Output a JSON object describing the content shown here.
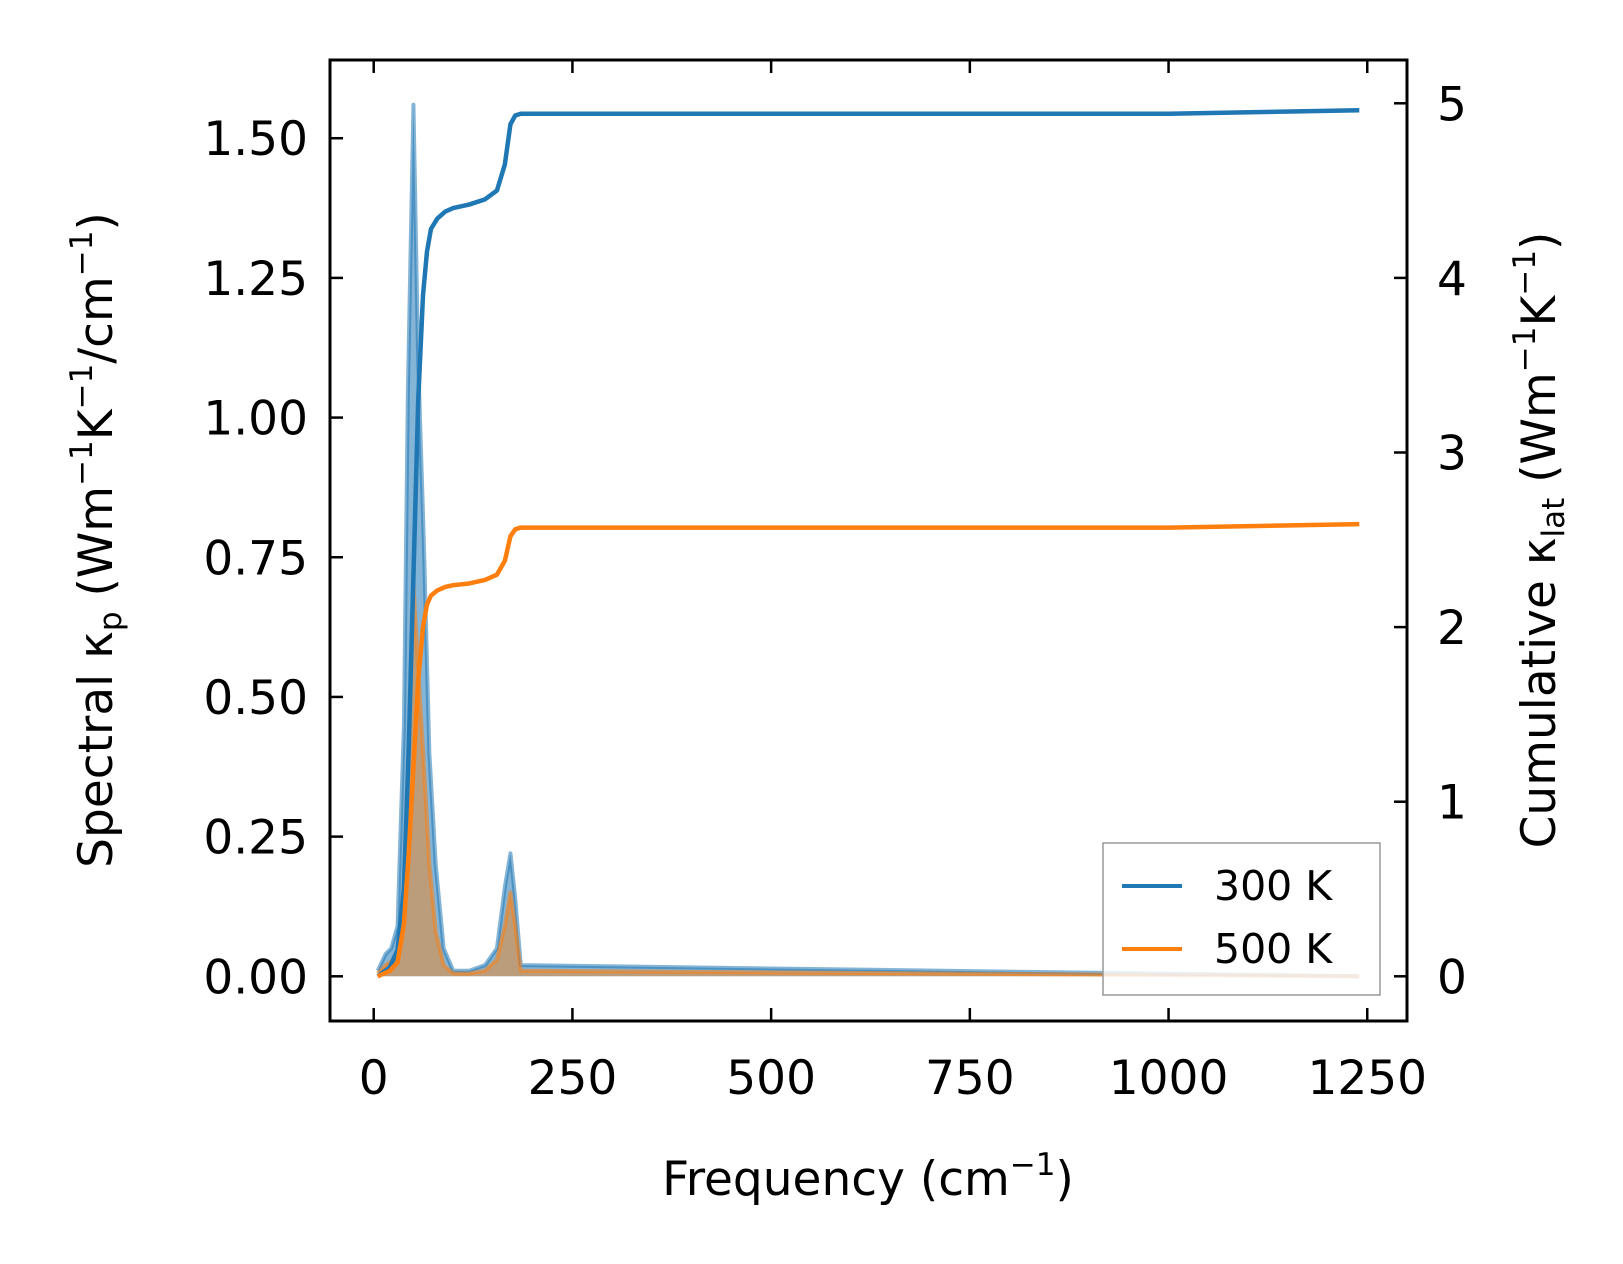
{
  "chart_data": {
    "type": "line",
    "xlabel": {
      "main": "Frequency (cm",
      "sup": "−1",
      "end": ")"
    },
    "ylabel_left": {
      "pre": "Spectral κ",
      "sub": "p",
      "mid1": " (Wm",
      "sup1": "−1",
      "mid2": "K",
      "sup2": "−1",
      "mid3": "/cm",
      "sup3": "−1",
      "end": ")"
    },
    "ylabel_right": {
      "pre": "Cumulative κ",
      "sub": "lat",
      "mid1": " (Wm",
      "sup1": "−1",
      "mid2": "K",
      "sup2": "−1",
      "end": ")"
    },
    "xlim": [
      -55,
      1300
    ],
    "ylim_left": [
      -0.08,
      1.64
    ],
    "ylim_right": [
      -0.256,
      5.248
    ],
    "xticks": [
      0,
      250,
      500,
      750,
      1000,
      1250
    ],
    "xtick_labels": [
      "0",
      "250",
      "500",
      "750",
      "1000",
      "1250"
    ],
    "yticks_left": [
      0.0,
      0.25,
      0.5,
      0.75,
      1.0,
      1.25,
      1.5
    ],
    "ytick_labels_left": [
      "0.00",
      "0.25",
      "0.50",
      "0.75",
      "1.00",
      "1.25",
      "1.50"
    ],
    "yticks_right": [
      0,
      1,
      2,
      3,
      4,
      5
    ],
    "ytick_labels_right": [
      "0",
      "1",
      "2",
      "3",
      "4",
      "5"
    ],
    "legend": {
      "position": "lower-right",
      "entries": [
        {
          "label": "300 K",
          "color": "#1f77b4"
        },
        {
          "label": "500 K",
          "color": "#ff7f0e"
        }
      ]
    },
    "series": [
      {
        "name": "300 K",
        "color": "#1f77b4",
        "spectral": {
          "x": [
            5,
            15,
            22,
            30,
            38,
            43,
            50,
            56,
            63,
            70,
            78,
            88,
            100,
            120,
            140,
            155,
            165,
            172,
            178,
            185,
            1240
          ],
          "y": [
            0.01,
            0.04,
            0.05,
            0.09,
            0.45,
            1.05,
            1.56,
            1.1,
            0.78,
            0.4,
            0.2,
            0.05,
            0.01,
            0.01,
            0.02,
            0.05,
            0.16,
            0.22,
            0.14,
            0.02,
            0.0
          ]
        },
        "cumulative": {
          "x": [
            5,
            20,
            30,
            38,
            44,
            50,
            56,
            62,
            67,
            72,
            80,
            90,
            100,
            120,
            140,
            155,
            165,
            172,
            178,
            185,
            1000,
            1240
          ],
          "y": [
            0.0,
            0.05,
            0.15,
            0.5,
            1.3,
            2.3,
            3.3,
            3.9,
            4.15,
            4.28,
            4.34,
            4.38,
            4.4,
            4.42,
            4.45,
            4.5,
            4.65,
            4.88,
            4.93,
            4.94,
            4.94,
            4.96
          ]
        }
      },
      {
        "name": "500 K",
        "color": "#ff7f0e",
        "spectral": {
          "x": [
            5,
            15,
            25,
            35,
            43,
            50,
            56,
            63,
            70,
            78,
            88,
            100,
            120,
            140,
            155,
            165,
            172,
            178,
            185,
            1240
          ],
          "y": [
            0.005,
            0.02,
            0.03,
            0.06,
            0.35,
            0.7,
            0.55,
            0.38,
            0.2,
            0.08,
            0.02,
            0.005,
            0.005,
            0.01,
            0.03,
            0.09,
            0.15,
            0.09,
            0.01,
            0.0
          ]
        },
        "cumulative": {
          "x": [
            5,
            20,
            30,
            38,
            44,
            50,
            56,
            62,
            67,
            72,
            80,
            90,
            100,
            120,
            140,
            155,
            165,
            172,
            178,
            185,
            1000,
            1240
          ],
          "y": [
            0.0,
            0.03,
            0.08,
            0.3,
            0.7,
            1.2,
            1.7,
            2.0,
            2.13,
            2.18,
            2.21,
            2.23,
            2.24,
            2.25,
            2.27,
            2.3,
            2.38,
            2.52,
            2.56,
            2.57,
            2.57,
            2.59
          ]
        }
      }
    ]
  }
}
